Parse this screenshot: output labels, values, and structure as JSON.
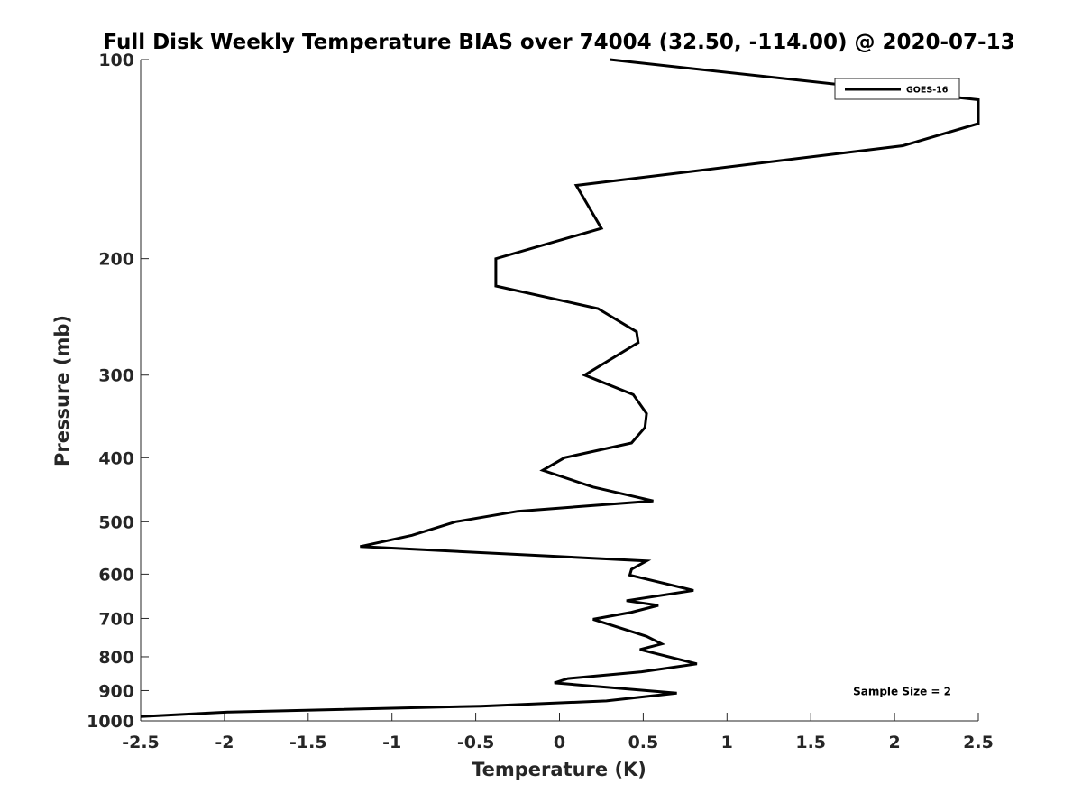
{
  "chart_data": {
    "type": "line",
    "title": "Full Disk Weekly Temperature BIAS over 74004 (32.50, -114.00) @ 2020-07-13",
    "xlabel": "Temperature (K)",
    "ylabel": "Pressure (mb)",
    "xlim": [
      -2.5,
      2.5
    ],
    "ylim": [
      100,
      1000
    ],
    "y_scale": "log",
    "y_reversed": true,
    "grid": false,
    "legend_position": "top-right",
    "x_ticks": [
      -2.5,
      -2,
      -1.5,
      -1,
      -0.5,
      0,
      0.5,
      1,
      1.5,
      2,
      2.5
    ],
    "x_tick_labels": [
      "-2.5",
      "-2",
      "-1.5",
      "-1",
      "-0.5",
      "0",
      "0.5",
      "1",
      "1.5",
      "2",
      "2.5"
    ],
    "y_ticks": [
      100,
      200,
      300,
      400,
      500,
      600,
      700,
      800,
      900,
      1000
    ],
    "y_tick_labels": [
      "100",
      "200",
      "300",
      "400",
      "500",
      "600",
      "700",
      "800",
      "900",
      "1000"
    ],
    "series": [
      {
        "name": "GOES-16",
        "color": "#000000",
        "points": [
          [
            0.3,
            100
          ],
          [
            2.5,
            115
          ],
          [
            2.5,
            125
          ],
          [
            2.05,
            135
          ],
          [
            0.1,
            155
          ],
          [
            0.25,
            180
          ],
          [
            -0.38,
            200
          ],
          [
            -0.38,
            220
          ],
          [
            0.23,
            238
          ],
          [
            0.46,
            258
          ],
          [
            0.47,
            268
          ],
          [
            0.15,
            300
          ],
          [
            0.44,
            321
          ],
          [
            0.52,
            343
          ],
          [
            0.51,
            360
          ],
          [
            0.43,
            380
          ],
          [
            0.03,
            400
          ],
          [
            -0.1,
            418
          ],
          [
            0.2,
            443
          ],
          [
            0.56,
            465
          ],
          [
            -0.25,
            482
          ],
          [
            -0.62,
            500
          ],
          [
            -0.88,
            524
          ],
          [
            -1.19,
            545
          ],
          [
            0.52,
            573
          ],
          [
            0.43,
            590
          ],
          [
            0.42,
            602
          ],
          [
            0.8,
            635
          ],
          [
            0.4,
            658
          ],
          [
            0.59,
            669
          ],
          [
            0.43,
            685
          ],
          [
            0.2,
            702
          ],
          [
            0.52,
            745
          ],
          [
            0.61,
            765
          ],
          [
            0.48,
            780
          ],
          [
            0.82,
            820
          ],
          [
            0.49,
            843
          ],
          [
            0.05,
            863
          ],
          [
            -0.03,
            876
          ],
          [
            0.7,
            908
          ],
          [
            0.28,
            933
          ],
          [
            -0.47,
            950
          ],
          [
            -1.98,
            970
          ],
          [
            -2.5,
            985
          ]
        ]
      }
    ],
    "annotations": [
      {
        "text": "Sample Size = 2",
        "x": 2.0,
        "y": 900
      }
    ]
  }
}
